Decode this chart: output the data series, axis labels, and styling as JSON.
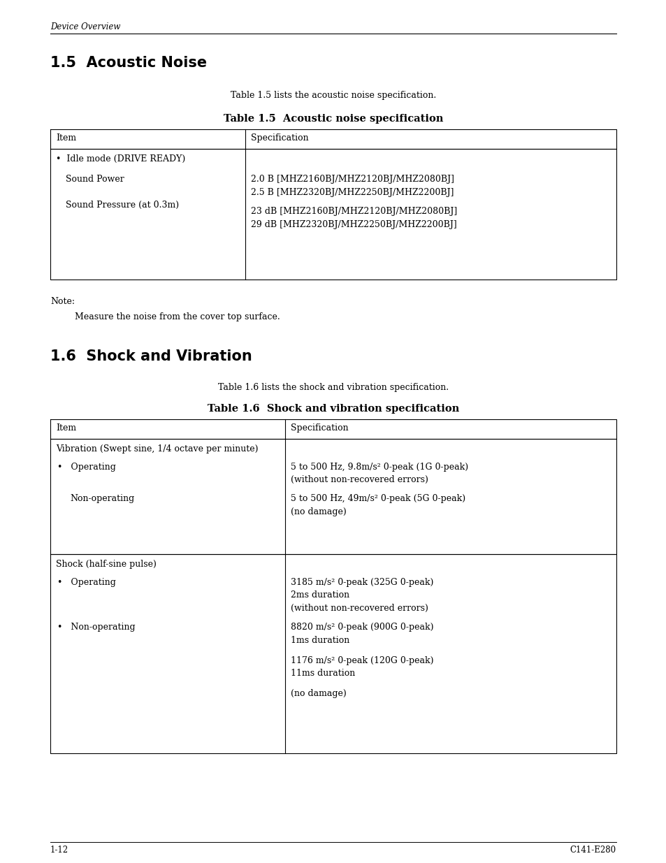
{
  "page_width": 9.54,
  "page_height": 12.35,
  "bg_color": "#ffffff",
  "header_italic": "Device Overview",
  "section1_title": "1.5  Acoustic Noise",
  "section1_intro": "Table 1.5 lists the acoustic noise specification.",
  "table1_title": "Table 1.5  Acoustic noise specification",
  "table1_col_split": 0.345,
  "table1_header_item": "Item",
  "table1_header_spec": "Specification",
  "note_label": "Note:",
  "note_text": "      Measure the noise from the cover top surface.",
  "section2_title": "1.6  Shock and Vibration",
  "section2_intro": "Table 1.6 lists the shock and vibration specification.",
  "table2_title": "Table 1.6  Shock and vibration specification",
  "table2_col_split": 0.415,
  "table2_header_item": "Item",
  "table2_header_spec": "Specification",
  "footer_left": "1-12",
  "footer_right": "C141-E280",
  "font_size_header": 8.5,
  "font_size_title": 15,
  "font_size_table_title": 10.5,
  "font_size_body": 9,
  "font_size_footer": 8.5,
  "lm": 0.078,
  "rm": 0.942
}
